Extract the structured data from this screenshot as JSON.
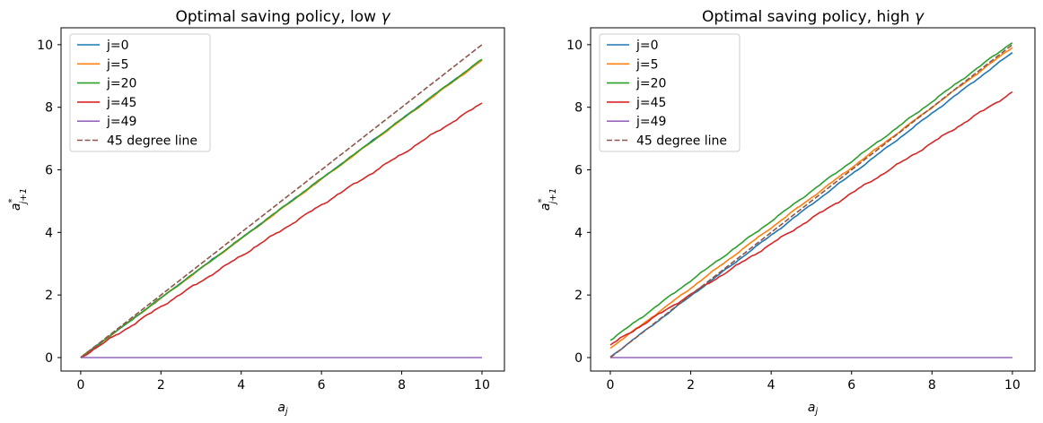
{
  "figure": {
    "background": "#ffffff",
    "frame_color": "#000000",
    "legend_border_color": "#cccccc",
    "legend_background": "#ffffff"
  },
  "chart_data": [
    {
      "type": "line",
      "title": "Optimal saving policy, low γ",
      "xlabel": {
        "base": "a",
        "sub": "j"
      },
      "ylabel": {
        "base": "a",
        "sup": "*",
        "sub": "j+1"
      },
      "xlim": [
        -0.49,
        10.56
      ],
      "ylim": [
        -0.43,
        10.54
      ],
      "xticks": [
        0,
        2,
        4,
        6,
        8,
        10
      ],
      "yticks": [
        0,
        2,
        4,
        6,
        8,
        10
      ],
      "grid": false,
      "legend_position": "upper-left",
      "x": [
        0,
        1,
        2,
        3,
        4,
        5,
        6,
        7,
        8,
        9,
        10
      ],
      "series": [
        {
          "name": "j=0",
          "color": "#1f77b4",
          "dash": false,
          "wiggle": 0.022,
          "values": [
            0,
            0.95,
            1.9,
            2.86,
            3.81,
            4.76,
            5.71,
            6.67,
            7.62,
            8.57,
            9.52
          ]
        },
        {
          "name": "j=5",
          "color": "#ff7f0e",
          "dash": false,
          "wiggle": 0.022,
          "values": [
            0,
            0.95,
            1.9,
            2.85,
            3.8,
            4.75,
            5.7,
            6.65,
            7.6,
            8.55,
            9.5
          ]
        },
        {
          "name": "j=20",
          "color": "#2ca02c",
          "dash": false,
          "wiggle": 0.022,
          "values": [
            0,
            0.95,
            1.91,
            2.86,
            3.81,
            4.77,
            5.72,
            6.67,
            7.62,
            8.58,
            9.53
          ]
        },
        {
          "name": "j=45",
          "color": "#d62728",
          "dash": false,
          "wiggle": 0.04,
          "values": [
            0,
            0.81,
            1.63,
            2.44,
            3.25,
            4.07,
            4.88,
            5.69,
            6.5,
            7.32,
            8.13
          ]
        },
        {
          "name": "j=49",
          "color": "#9467bd",
          "dash": false,
          "wiggle": 0,
          "values": [
            0,
            0,
            0,
            0,
            0,
            0,
            0,
            0,
            0,
            0,
            0
          ]
        },
        {
          "name": "45 degree line",
          "color": "#8c564b",
          "dash": true,
          "wiggle": 0,
          "values": [
            0,
            1,
            2,
            3,
            4,
            5,
            6,
            7,
            8,
            9,
            10
          ]
        }
      ]
    },
    {
      "type": "line",
      "title": "Optimal saving policy, high γ",
      "xlabel": {
        "base": "a",
        "sub": "j"
      },
      "ylabel": {
        "base": "a",
        "sup": "*",
        "sub": "j+1"
      },
      "xlim": [
        -0.49,
        10.56
      ],
      "ylim": [
        -0.43,
        10.54
      ],
      "xticks": [
        0,
        2,
        4,
        6,
        8,
        10
      ],
      "yticks": [
        0,
        2,
        4,
        6,
        8,
        10
      ],
      "grid": false,
      "legend_position": "upper-left",
      "x": [
        0,
        1,
        2,
        3,
        4,
        5,
        6,
        7,
        8,
        9,
        10
      ],
      "series": [
        {
          "name": "j=0",
          "color": "#1f77b4",
          "dash": false,
          "wiggle": 0.025,
          "values": [
            0.02,
            0.99,
            1.97,
            2.94,
            3.91,
            4.89,
            5.86,
            6.83,
            7.81,
            8.78,
            9.75
          ]
        },
        {
          "name": "j=5",
          "color": "#ff7f0e",
          "dash": false,
          "wiggle": 0.025,
          "values": [
            0.3,
            1.26,
            2.22,
            3.19,
            4.15,
            5.11,
            6.07,
            7.04,
            8.0,
            8.96,
            9.92
          ]
        },
        {
          "name": "j=20",
          "color": "#2ca02c",
          "dash": false,
          "wiggle": 0.03,
          "values": [
            0.55,
            1.5,
            2.46,
            3.41,
            4.36,
            5.32,
            6.27,
            7.22,
            8.18,
            9.13,
            10.08
          ]
        },
        {
          "name": "j=45",
          "color": "#d62728",
          "dash": false,
          "wiggle": 0.04,
          "values": [
            0.4,
            1.21,
            2.02,
            2.82,
            3.63,
            4.44,
            5.25,
            6.05,
            6.86,
            7.67,
            8.48
          ]
        },
        {
          "name": "j=49",
          "color": "#9467bd",
          "dash": false,
          "wiggle": 0,
          "values": [
            0,
            0,
            0,
            0,
            0,
            0,
            0,
            0,
            0,
            0,
            0
          ]
        },
        {
          "name": "45 degree line",
          "color": "#8c564b",
          "dash": true,
          "wiggle": 0,
          "values": [
            0,
            1,
            2,
            3,
            4,
            5,
            6,
            7,
            8,
            9,
            10
          ]
        }
      ]
    }
  ]
}
